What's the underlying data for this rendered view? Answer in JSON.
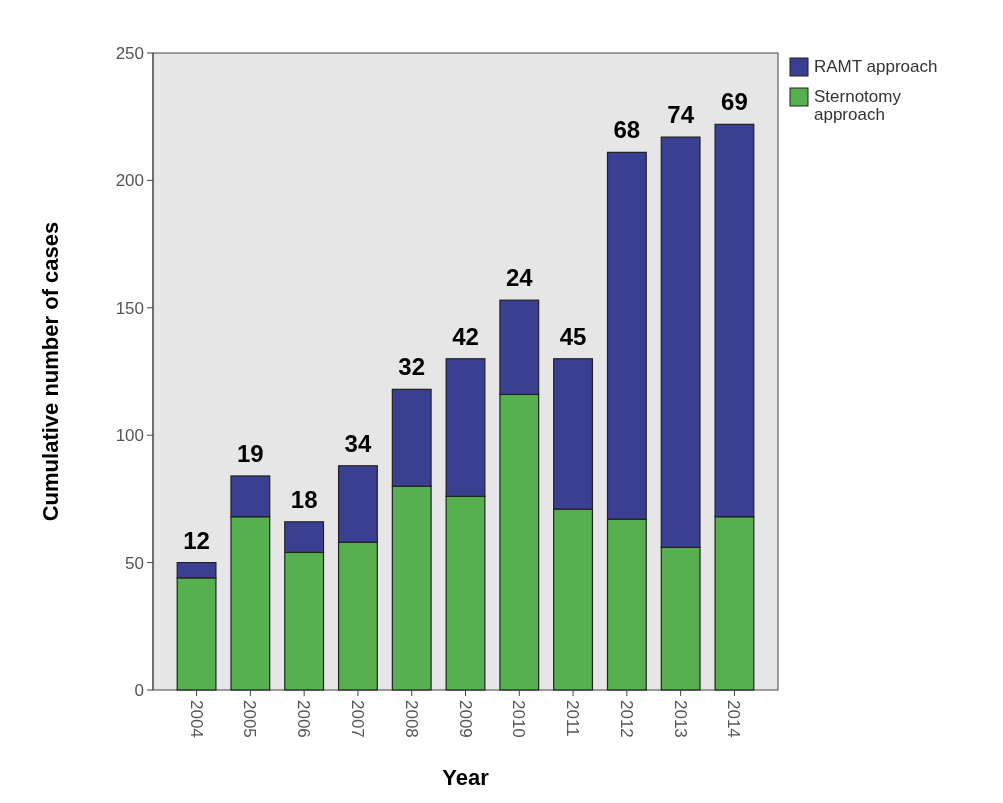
{
  "chart_data": {
    "type": "bar",
    "stacked": true,
    "xlabel": "Year",
    "ylabel": "Cumulative number of cases",
    "categories": [
      "2004",
      "2005",
      "2006",
      "2007",
      "2008",
      "2009",
      "2010",
      "2011",
      "2012",
      "2013",
      "2014"
    ],
    "series": [
      {
        "name": "Sternotomy approach",
        "color": "#57b04f",
        "values": [
          44,
          68,
          54,
          58,
          80,
          76,
          116,
          71,
          67,
          56,
          68
        ]
      },
      {
        "name": "RAMT approach",
        "color": "#3b3f91",
        "values": [
          6,
          16,
          12,
          30,
          38,
          54,
          37,
          59,
          144,
          161,
          154
        ]
      }
    ],
    "ylim": [
      0,
      250
    ],
    "yticks": [
      0,
      50,
      100,
      150,
      200,
      250
    ],
    "grid": false,
    "legend": "top right",
    "annotations": [
      {
        "text": "12",
        "x": "2004",
        "y": 50
      },
      {
        "text": "19",
        "x": "2005",
        "y": 84
      },
      {
        "text": "18",
        "x": "2006",
        "y": 66
      },
      {
        "text": "34",
        "x": "2007",
        "y": 88
      },
      {
        "text": "32",
        "x": "2008",
        "y": 118
      },
      {
        "text": "42",
        "x": "2009",
        "y": 130
      },
      {
        "text": "24",
        "x": "2010",
        "y": 153
      },
      {
        "text": "45",
        "x": "2011",
        "y": 130
      },
      {
        "text": "68",
        "x": "2012",
        "y": 211
      },
      {
        "text": "74",
        "x": "2013",
        "y": 217
      },
      {
        "text": "69",
        "x": "2014",
        "y": 222
      }
    ]
  }
}
